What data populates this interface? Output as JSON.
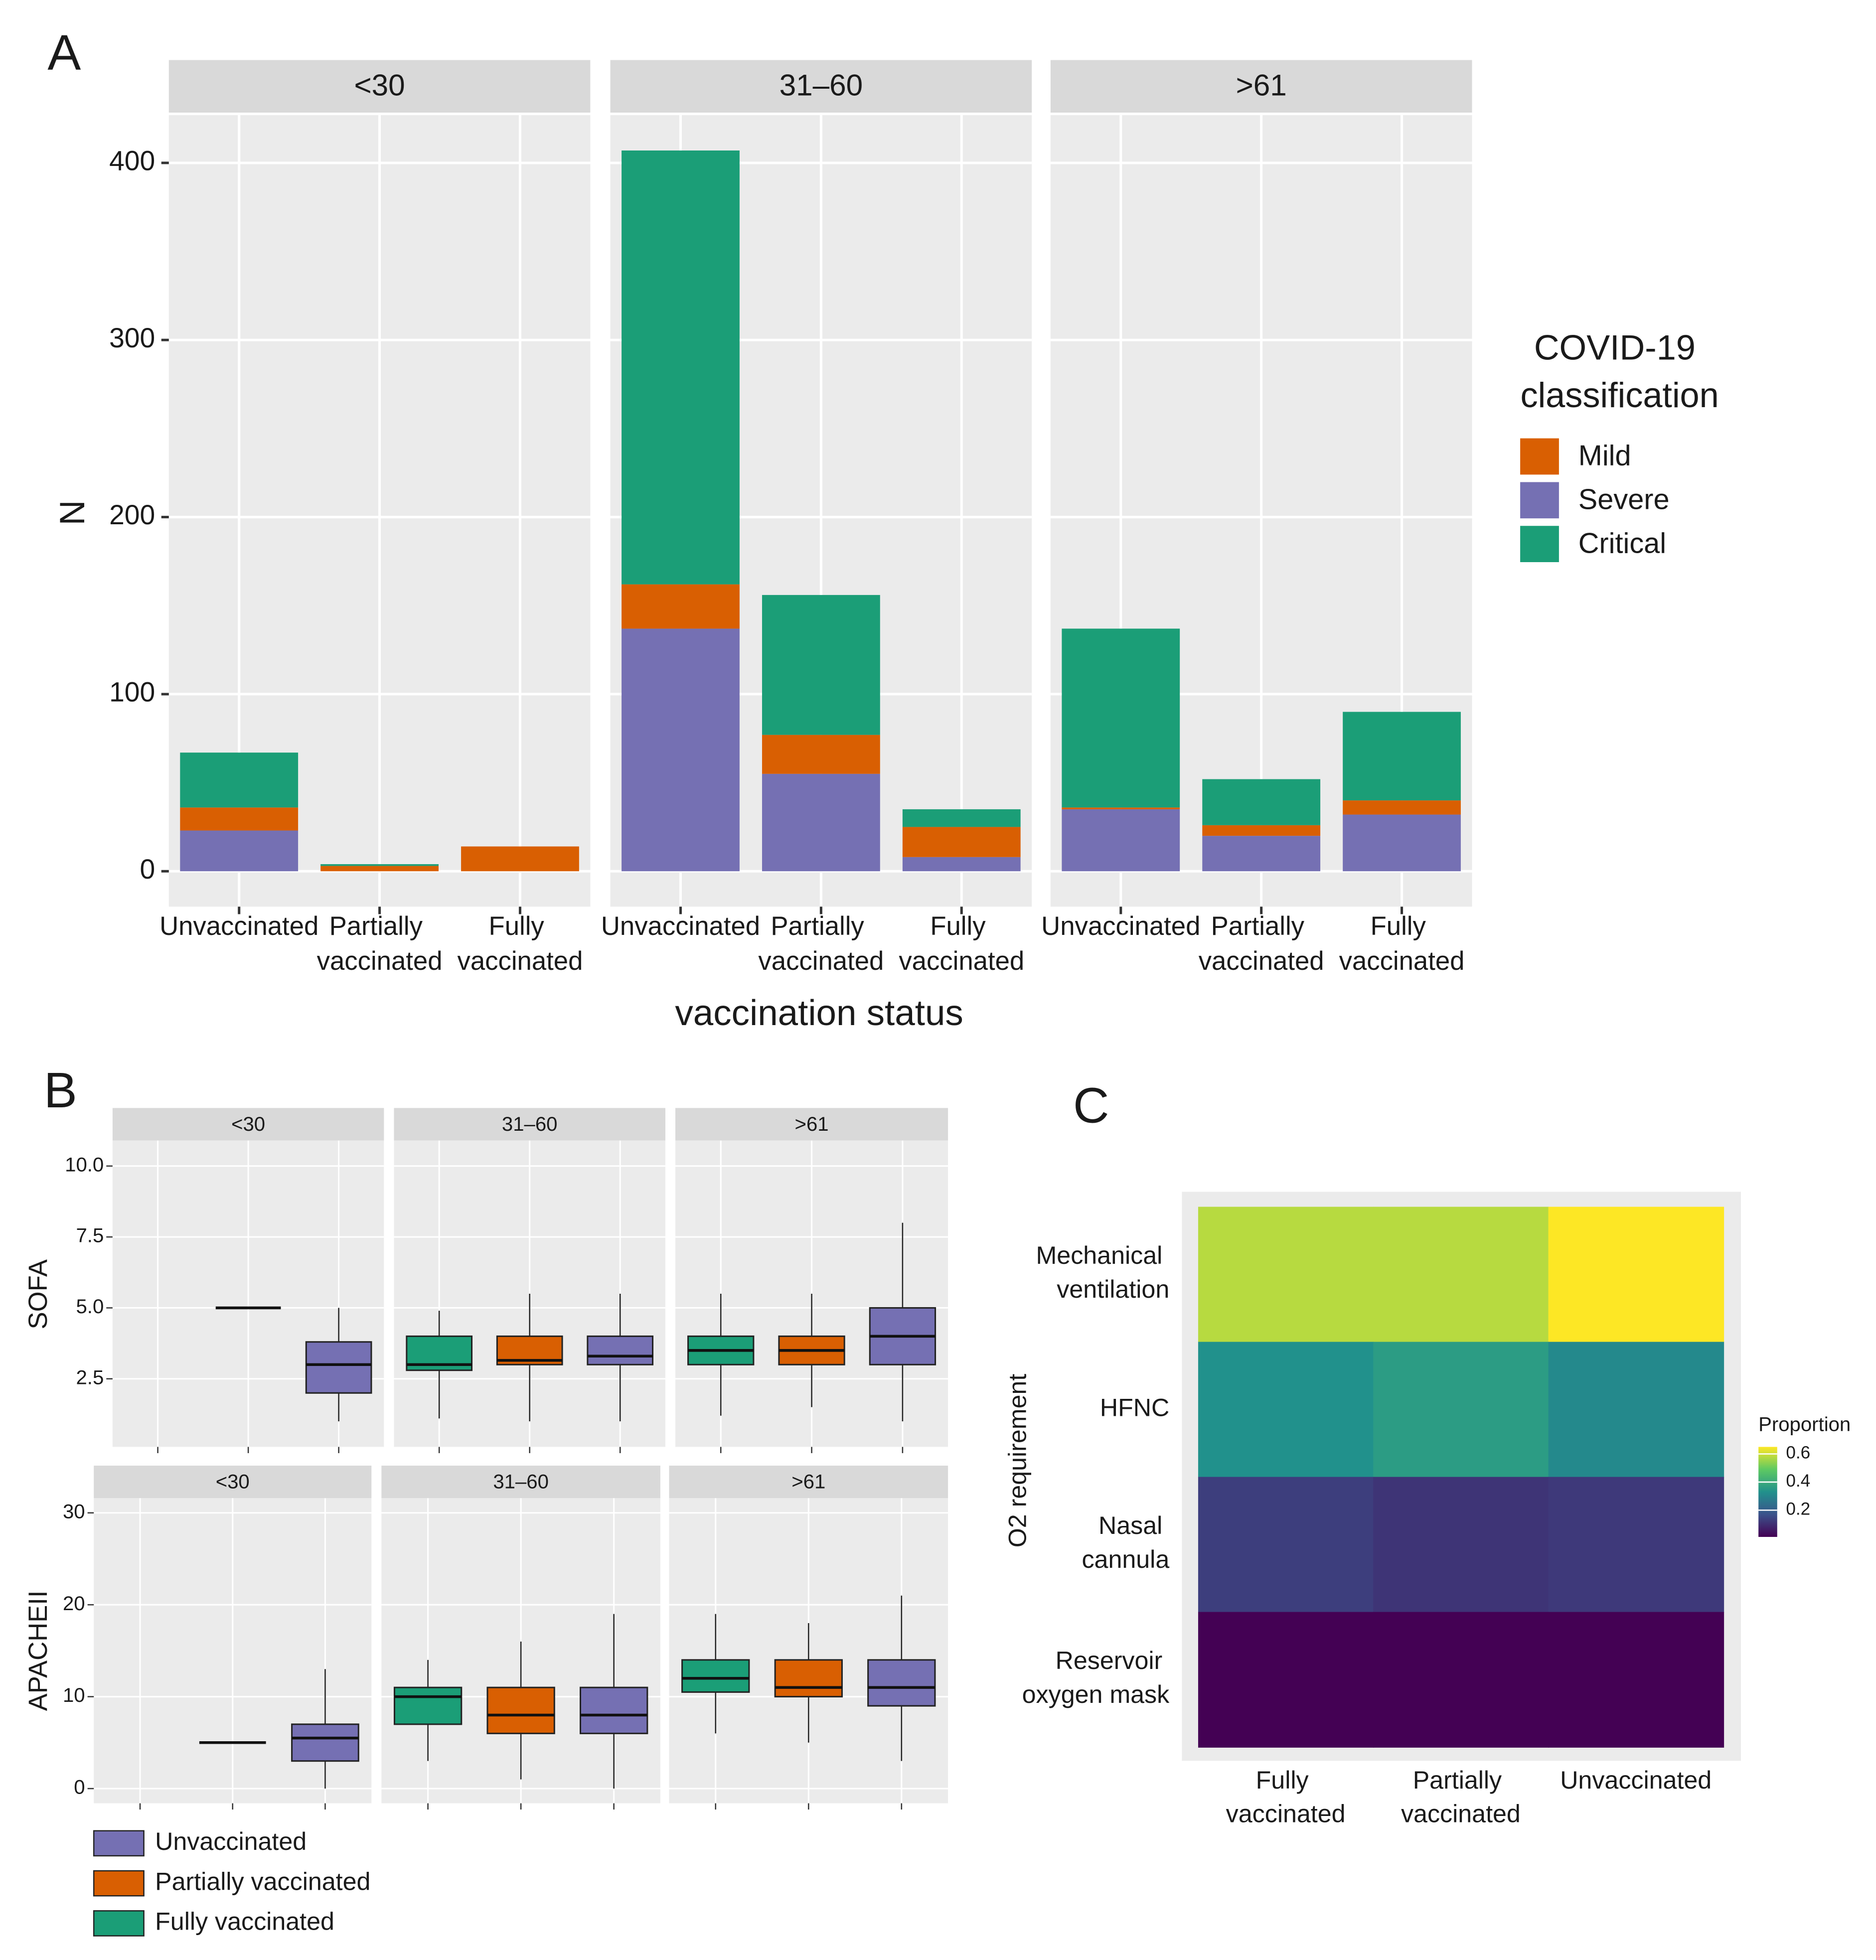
{
  "panel_labels": [
    "A",
    "B",
    "C"
  ],
  "chart_data": [
    {
      "type": "bar",
      "stacked": true,
      "facets": [
        "<30",
        "31–60",
        ">61"
      ],
      "categories": [
        "Unvaccinated",
        "Partially vaccinated",
        "Fully vaccinated"
      ],
      "x_label": "vaccination status",
      "y_label": "N",
      "legend_title": "COVID-19 classification",
      "ylim": [
        -20,
        427
      ],
      "yticks": [
        0,
        100,
        200,
        300,
        400
      ],
      "series": [
        {
          "name": "Mild",
          "color": "#d95f02",
          "values": [
            [
              13,
              3,
              14
            ],
            [
              25,
              22,
              17
            ],
            [
              1,
              6,
              8
            ]
          ]
        },
        {
          "name": "Severe",
          "color": "#7570b3",
          "values": [
            [
              23,
              0,
              0
            ],
            [
              137,
              55,
              8
            ],
            [
              35,
              20,
              32
            ]
          ]
        },
        {
          "name": "Critical",
          "color": "#1b9e77",
          "values": [
            [
              31,
              1,
              0
            ],
            [
              245,
              79,
              10
            ],
            [
              101,
              26,
              50
            ]
          ]
        }
      ]
    },
    {
      "type": "box",
      "y_label": "SOFA",
      "facets": [
        "<30",
        "31–60",
        ">61"
      ],
      "ylim": [
        0.1,
        10.9
      ],
      "yticks": [
        {
          "value": 2.5,
          "label": "2.5"
        },
        {
          "value": 5,
          "label": "5.0"
        },
        {
          "value": 7.5,
          "label": "7.5"
        },
        {
          "value": 10,
          "label": "10.0"
        }
      ],
      "series": [
        {
          "name": "Unvaccinated",
          "color": "#7570b3",
          "boxes": [
            {
              "min": 1,
              "q1": 2,
              "median": 3,
              "q3": 3.8,
              "max": 5
            },
            {
              "min": 1,
              "q1": 3,
              "median": 3.3,
              "q3": 4,
              "max": 5.5
            },
            {
              "min": 1,
              "q1": 3,
              "median": 4,
              "q3": 5,
              "max": 8
            }
          ]
        },
        {
          "name": "Partially vaccinated",
          "color": "#d95f02",
          "boxes": [
            {
              "min": 5,
              "q1": 5,
              "median": 5,
              "q3": 5,
              "max": 5
            },
            {
              "min": 1,
              "q1": 3,
              "median": 3.15,
              "q3": 4,
              "max": 5.5
            },
            {
              "min": 1.5,
              "q1": 3,
              "median": 3.5,
              "q3": 4,
              "max": 5.5
            }
          ]
        },
        {
          "name": "Fully vaccinated",
          "color": "#1b9e77",
          "boxes": [
            null,
            {
              "min": 1.1,
              "q1": 2.8,
              "median": 3,
              "q3": 4,
              "max": 4.9
            },
            {
              "min": 1.2,
              "q1": 3,
              "median": 3.5,
              "q3": 4,
              "max": 5.5
            }
          ]
        }
      ]
    },
    {
      "type": "box",
      "y_label": "APACHEII",
      "facets": [
        "<30",
        "31–60",
        ">61"
      ],
      "ylim": [
        -1.6,
        31.6
      ],
      "yticks": [
        0,
        10,
        20,
        30
      ],
      "series": [
        {
          "boxes": [
            {
              "min": 0,
              "q1": 3,
              "median": 5.5,
              "q3": 7,
              "max": 13
            },
            {
              "min": 0,
              "q1": 6,
              "median": 8,
              "q3": 11,
              "max": 19
            },
            {
              "min": 3,
              "q1": 9,
              "median": 11,
              "q3": 14,
              "max": 21
            }
          ]
        },
        {
          "boxes": [
            {
              "min": 5,
              "q1": 5,
              "median": 5,
              "q3": 5,
              "max": 5
            },
            {
              "min": 1,
              "q1": 6,
              "median": 8,
              "q3": 11,
              "max": 16
            },
            {
              "min": 5,
              "q1": 10,
              "median": 11,
              "q3": 14,
              "max": 18
            }
          ]
        },
        {
          "boxes": [
            null,
            {
              "min": 3,
              "q1": 7,
              "median": 10,
              "q3": 11,
              "max": 14
            },
            {
              "min": 6,
              "q1": 10.5,
              "median": 12,
              "q3": 14,
              "max": 19
            }
          ]
        }
      ]
    },
    {
      "type": "heatmap",
      "rows": [
        "Mechanical ventilation",
        "HFNC",
        "Nasal cannula",
        "Reservoir oxygen mask"
      ],
      "columns": [
        "Fully vaccinated",
        "Partially vaccinated",
        "Unvaccinated"
      ],
      "values": [
        [
          0.58,
          0.58,
          0.65
        ],
        [
          0.33,
          0.36,
          0.31
        ],
        [
          0.13,
          0.11,
          0.12
        ],
        [
          0.01,
          0.01,
          0.01
        ]
      ],
      "y_label": "O2 requirement",
      "legend_title": "Proportion",
      "clim": [
        0.01,
        0.65
      ],
      "cticks": [
        0.2,
        0.4,
        0.6
      ]
    }
  ]
}
